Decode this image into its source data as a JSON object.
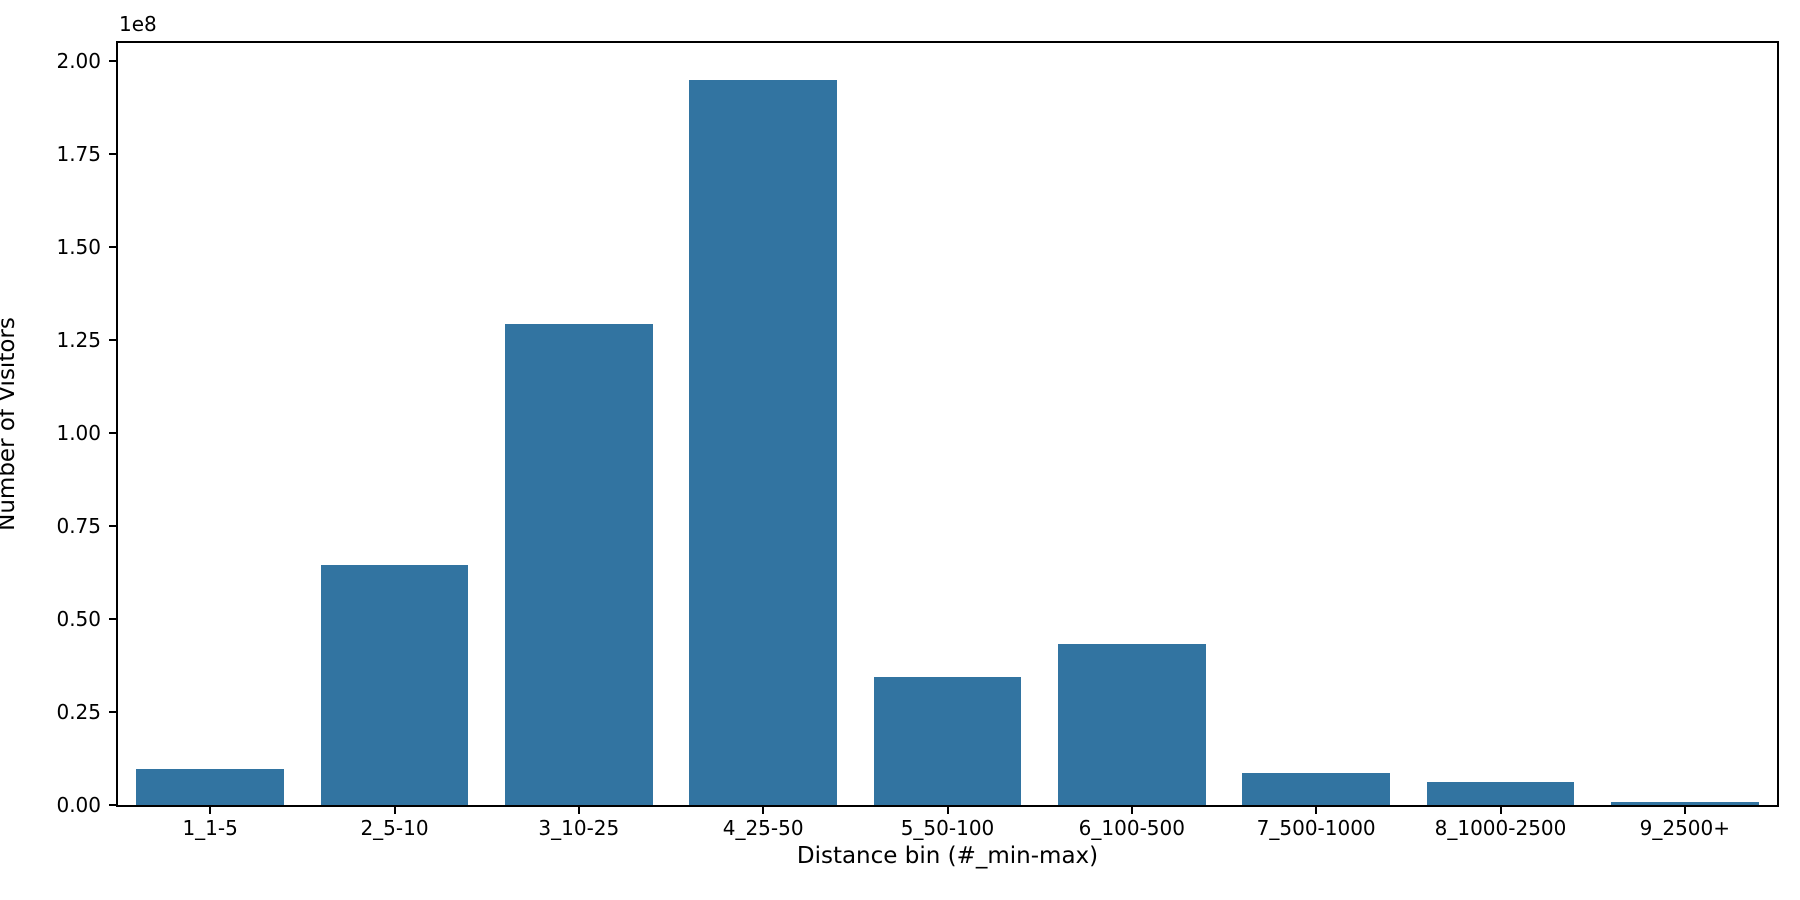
{
  "figure": {
    "background": "#ffffff",
    "bar_color": "#3274a1",
    "axis_color": "#000000"
  },
  "chart_data": {
    "type": "bar",
    "title": "",
    "xlabel": "Distance bin (#_min-max)",
    "ylabel": "Number of Visitors",
    "offset_text": "1e8",
    "categories": [
      "1_1-5",
      "2_5-10",
      "3_10-25",
      "4_25-50",
      "5_50-100",
      "6_100-500",
      "7_500-1000",
      "8_1000-2500",
      "9_2500+"
    ],
    "values": [
      9700000,
      64400000,
      129200000,
      194800000,
      34500000,
      43300000,
      8700000,
      6300000,
      800000
    ],
    "ylim": [
      0,
      204800000
    ],
    "yticks": {
      "values": [
        0,
        25000000,
        50000000,
        75000000,
        100000000,
        125000000,
        150000000,
        175000000,
        200000000
      ],
      "labels": [
        "0.00",
        "0.25",
        "0.50",
        "0.75",
        "1.00",
        "1.25",
        "1.50",
        "1.75",
        "2.00"
      ]
    },
    "bar_relative_width": 0.8,
    "grid": false,
    "legend_position": "none"
  }
}
